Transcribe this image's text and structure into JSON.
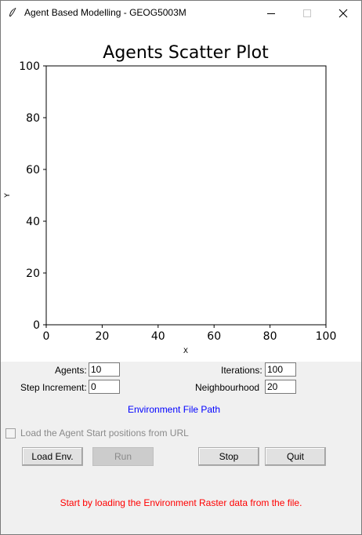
{
  "window": {
    "title": "Agent Based Modelling - GEOG5003M"
  },
  "title_bar_buttons": [
    "minimize",
    "maximize",
    "close"
  ],
  "chart_data": {
    "type": "scatter",
    "title": "Agents Scatter Plot",
    "xlabel": "X",
    "ylabel": "Y",
    "xlim": [
      0,
      100
    ],
    "ylim": [
      0,
      100
    ],
    "x_ticks": [
      "0",
      "20",
      "40",
      "60",
      "80",
      "100"
    ],
    "y_ticks": [
      "0",
      "20",
      "40",
      "60",
      "80",
      "100"
    ],
    "series": [],
    "grid": false
  },
  "controls": {
    "agents_label": "Agents:",
    "agents_value": "10",
    "iterations_label": "Iterations:",
    "iterations_value": "100",
    "step_label": "Step Increment:",
    "step_value": "0",
    "neighbourhood_label": "Neighbourhood",
    "neighbourhood_value": "20",
    "env_path_label": "Environment File Path",
    "checkbox_label": "Load the Agent Start positions from URL",
    "checkbox_checked": false,
    "checkbox_enabled": false
  },
  "buttons": {
    "load_env": "Load Env.",
    "run": "Run",
    "stop": "Stop",
    "quit": "Quit"
  },
  "status": {
    "message": "Start by loading the Environment Raster data from the file.",
    "color": "#ff0000"
  },
  "colors": {
    "link": "#0000ff",
    "disabled_text": "#8a8a8a"
  }
}
